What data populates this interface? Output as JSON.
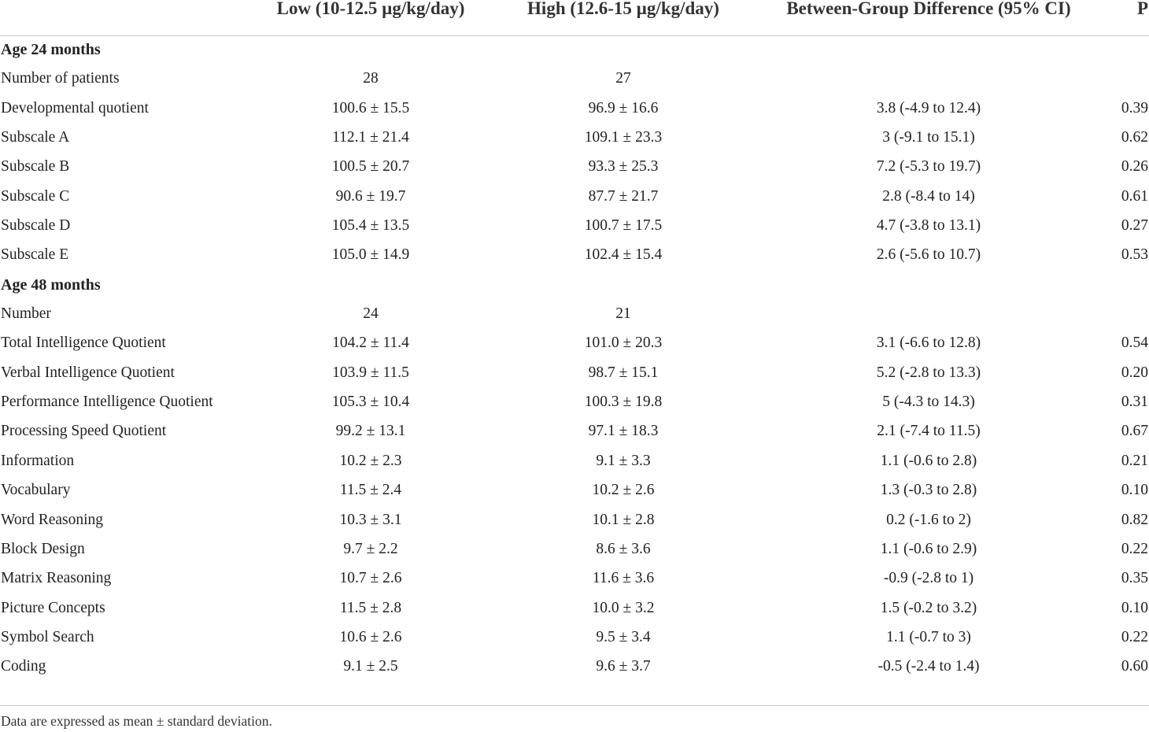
{
  "header": {
    "col_low": "Low (10-12.5 µg/kg/day)",
    "col_high": "High (12.6-15 µg/kg/day)",
    "col_diff": "Between-Group Difference (95% CI)",
    "col_p": "P"
  },
  "rows": [
    {
      "type": "section",
      "label": "Age 24 months"
    },
    {
      "type": "data",
      "label": "Number of patients",
      "low": "28",
      "high": "27",
      "diff": "",
      "p": ""
    },
    {
      "type": "data",
      "label": "Developmental quotient",
      "low": "100.6 ± 15.5",
      "high": "96.9 ± 16.6",
      "diff": "3.8 (-4.9 to 12.4)",
      "p": "0.39"
    },
    {
      "type": "data",
      "label": "Subscale A",
      "low": "112.1 ± 21.4",
      "high": "109.1 ± 23.3",
      "diff": "3 (-9.1 to 15.1)",
      "p": "0.62"
    },
    {
      "type": "data",
      "label": "Subscale B",
      "low": "100.5 ± 20.7",
      "high": "93.3 ± 25.3",
      "diff": "7.2 (-5.3 to 19.7)",
      "p": "0.26"
    },
    {
      "type": "data",
      "label": "Subscale C",
      "low": "90.6 ± 19.7",
      "high": "87.7 ± 21.7",
      "diff": "2.8 (-8.4 to 14)",
      "p": "0.61"
    },
    {
      "type": "data",
      "label": "Subscale D",
      "low": "105.4 ± 13.5",
      "high": "100.7 ± 17.5",
      "diff": "4.7 (-3.8 to 13.1)",
      "p": "0.27"
    },
    {
      "type": "data",
      "label": "Subscale E",
      "low": "105.0 ± 14.9",
      "high": "102.4 ± 15.4",
      "diff": "2.6 (-5.6 to 10.7)",
      "p": "0.53"
    },
    {
      "type": "section",
      "label": "Age 48 months"
    },
    {
      "type": "data",
      "label": "Number",
      "low": "24",
      "high": "21",
      "diff": "",
      "p": ""
    },
    {
      "type": "data",
      "label": "Total Intelligence Quotient",
      "low": "104.2 ± 11.4",
      "high": "101.0 ± 20.3",
      "diff": "3.1 (-6.6 to 12.8)",
      "p": "0.54"
    },
    {
      "type": "data",
      "label": "Verbal Intelligence Quotient",
      "low": "103.9 ± 11.5",
      "high": "98.7 ± 15.1",
      "diff": "5.2 (-2.8 to 13.3)",
      "p": "0.20"
    },
    {
      "type": "data",
      "label": "Performance Intelligence Quotient",
      "low": "105.3 ± 10.4",
      "high": "100.3 ± 19.8",
      "diff": "5 (-4.3 to 14.3)",
      "p": "0.31"
    },
    {
      "type": "data",
      "label": "Processing Speed Quotient",
      "low": "99.2 ± 13.1",
      "high": "97.1 ± 18.3",
      "diff": "2.1 (-7.4 to 11.5)",
      "p": "0.67"
    },
    {
      "type": "data",
      "label": "Information",
      "low": "10.2 ± 2.3",
      "high": "9.1 ± 3.3",
      "diff": "1.1 (-0.6 to 2.8)",
      "p": "0.21"
    },
    {
      "type": "data",
      "label": "Vocabulary",
      "low": "11.5 ± 2.4",
      "high": "10.2 ± 2.6",
      "diff": "1.3 (-0.3 to 2.8)",
      "p": "0.10"
    },
    {
      "type": "data",
      "label": "Word Reasoning",
      "low": "10.3 ± 3.1",
      "high": "10.1 ± 2.8",
      "diff": "0.2 (-1.6 to 2)",
      "p": "0.82"
    },
    {
      "type": "data",
      "label": "Block Design",
      "low": "9.7 ± 2.2",
      "high": "8.6 ± 3.6",
      "diff": "1.1 (-0.6 to 2.9)",
      "p": "0.22"
    },
    {
      "type": "data",
      "label": "Matrix Reasoning",
      "low": "10.7 ± 2.6",
      "high": "11.6 ± 3.6",
      "diff": "-0.9 (-2.8 to 1)",
      "p": "0.35"
    },
    {
      "type": "data",
      "label": "Picture Concepts",
      "low": "11.5 ± 2.8",
      "high": "10.0 ± 3.2",
      "diff": "1.5 (-0.2 to 3.2)",
      "p": "0.10"
    },
    {
      "type": "data",
      "label": "Symbol Search",
      "low": "10.6 ± 2.6",
      "high": "9.5 ± 3.4",
      "diff": "1.1 (-0.7 to 3)",
      "p": "0.22"
    },
    {
      "type": "data",
      "label": "Coding",
      "low": "9.1 ± 2.5",
      "high": "9.6 ± 3.7",
      "diff": "-0.5 (-2.4 to 1.4)",
      "p": "0.60"
    }
  ],
  "footnote": "Data are expressed as mean ± standard deviation."
}
